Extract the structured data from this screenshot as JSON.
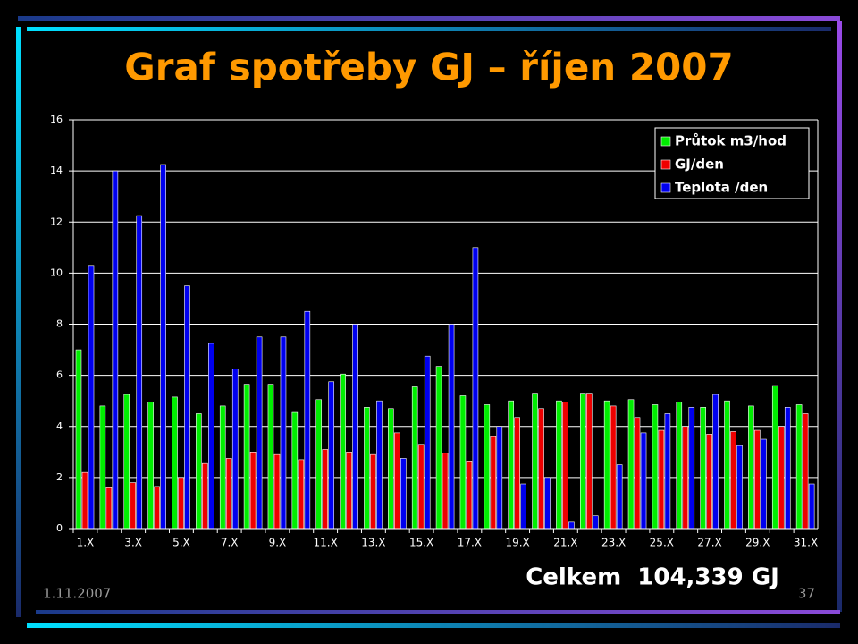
{
  "slide": {
    "date": "1.11.2007",
    "page_number": "37",
    "total": "Celkem  104,339 GJ"
  },
  "chart_data": {
    "type": "bar",
    "title": "Graf spotřeby GJ – říjen 2007",
    "categories": [
      "1.X",
      null,
      "3.X",
      null,
      "5.X",
      null,
      "7.X",
      null,
      "9.X",
      null,
      "11.X",
      null,
      "13.X",
      null,
      "15.X",
      null,
      "17.X",
      null,
      "19.X",
      null,
      "21.X",
      null,
      "23.X",
      null,
      "25.X",
      null,
      "27.X",
      null,
      "29.X",
      null,
      "31.X"
    ],
    "series": [
      {
        "name": "Průtok m3/hod",
        "color": "#00ee00",
        "values": [
          7.0,
          4.8,
          5.25,
          4.95,
          5.15,
          4.5,
          4.8,
          5.65,
          5.65,
          4.55,
          5.05,
          6.05,
          4.75,
          4.7,
          5.55,
          6.35,
          5.2,
          4.85,
          5.0,
          5.3,
          5.0,
          5.3,
          5.0,
          5.05,
          4.85,
          4.95,
          4.75,
          5.0,
          4.8,
          5.6,
          4.85
        ]
      },
      {
        "name": "GJ/den",
        "color": "#ee0000",
        "values": [
          2.2,
          1.6,
          1.8,
          1.65,
          2.0,
          2.55,
          2.75,
          3.0,
          2.9,
          2.7,
          3.1,
          3.0,
          2.9,
          3.75,
          3.3,
          2.95,
          2.65,
          3.6,
          4.35,
          4.7,
          4.95,
          5.3,
          4.8,
          4.35,
          3.85,
          4.0,
          3.7,
          3.8,
          3.85,
          4.0,
          4.5
        ]
      },
      {
        "name": "Teplota /den",
        "color": "#0000ee",
        "values": [
          10.3,
          14.0,
          12.25,
          14.25,
          9.5,
          7.25,
          6.25,
          7.5,
          7.5,
          8.5,
          5.75,
          8.0,
          5.0,
          2.75,
          6.75,
          8.0,
          11.0,
          4.0,
          1.75,
          2.0,
          0.25,
          0.5,
          2.5,
          3.75,
          4.5,
          4.75,
          5.25,
          3.25,
          3.5,
          4.75,
          1.75
        ]
      }
    ],
    "ylim": [
      0,
      16
    ],
    "yticks": [
      0,
      2,
      4,
      6,
      8,
      10,
      12,
      14,
      16
    ],
    "grid": true,
    "legend": "top-right"
  }
}
